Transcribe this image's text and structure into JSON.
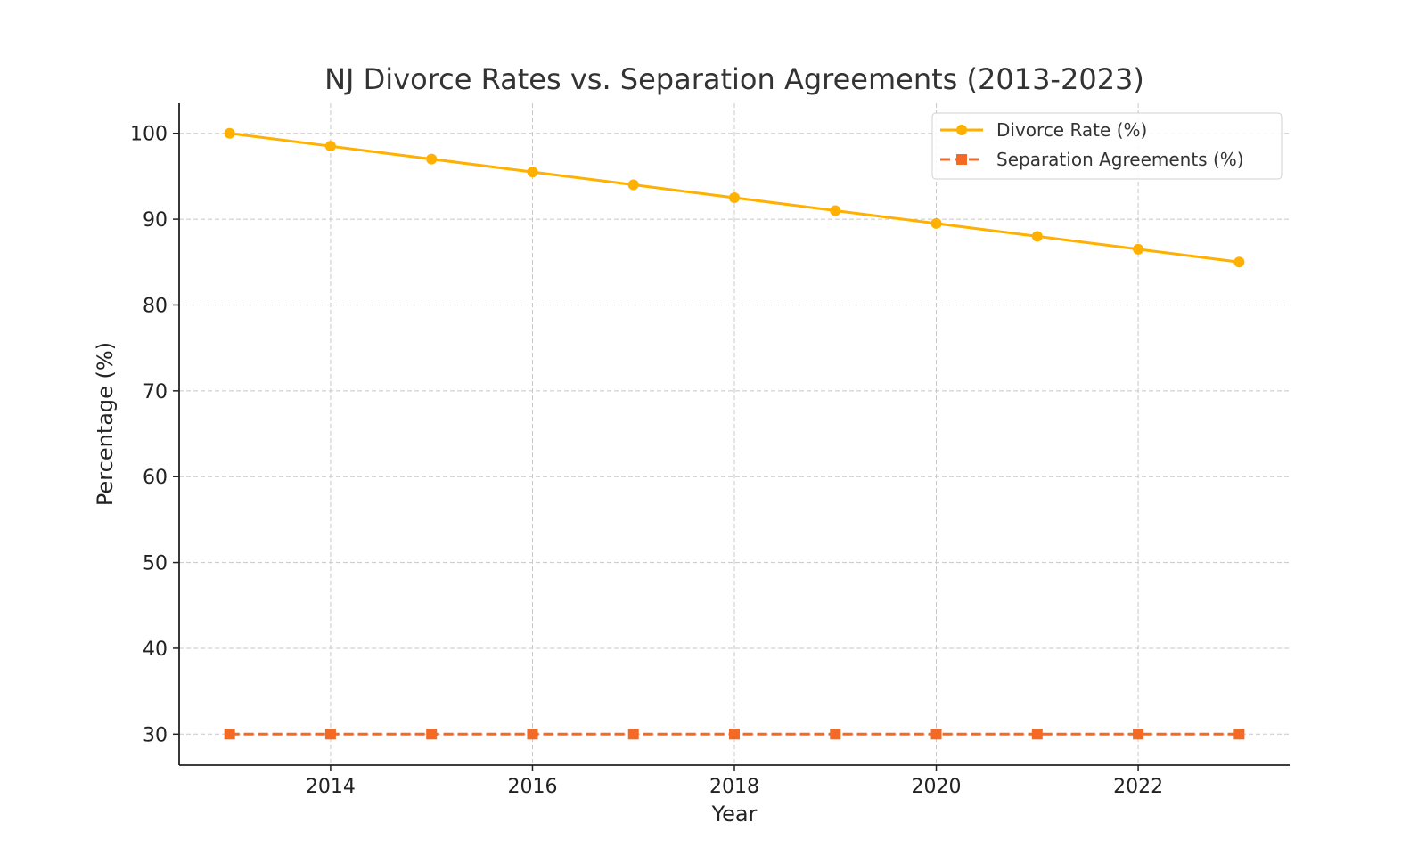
{
  "chart_data": {
    "type": "line",
    "title": "NJ Divorce Rates vs. Separation Agreements (2013-2023)",
    "xlabel": "Year",
    "ylabel": "Percentage (%)",
    "x": [
      2013,
      2014,
      2015,
      2016,
      2017,
      2018,
      2019,
      2020,
      2021,
      2022,
      2023
    ],
    "xlim": [
      2012.5,
      2023.5
    ],
    "ylim": [
      26.4,
      103.5
    ],
    "xticks": [
      2014,
      2016,
      2018,
      2020,
      2022
    ],
    "yticks": [
      30,
      40,
      50,
      60,
      70,
      80,
      90,
      100
    ],
    "grid": true,
    "legend_position": "top-right",
    "series": [
      {
        "name": "Divorce Rate (%)",
        "values": [
          100,
          98.5,
          97,
          95.5,
          94,
          92.5,
          91,
          89.5,
          88,
          86.5,
          85
        ],
        "color": "#FFB000",
        "marker": "circle",
        "linestyle": "solid"
      },
      {
        "name": "Separation Agreements (%)",
        "values": [
          30,
          30,
          30,
          30,
          30,
          30,
          30,
          30,
          30,
          30,
          30
        ],
        "color": "#F46A25",
        "marker": "square",
        "linestyle": "dashed"
      }
    ]
  }
}
